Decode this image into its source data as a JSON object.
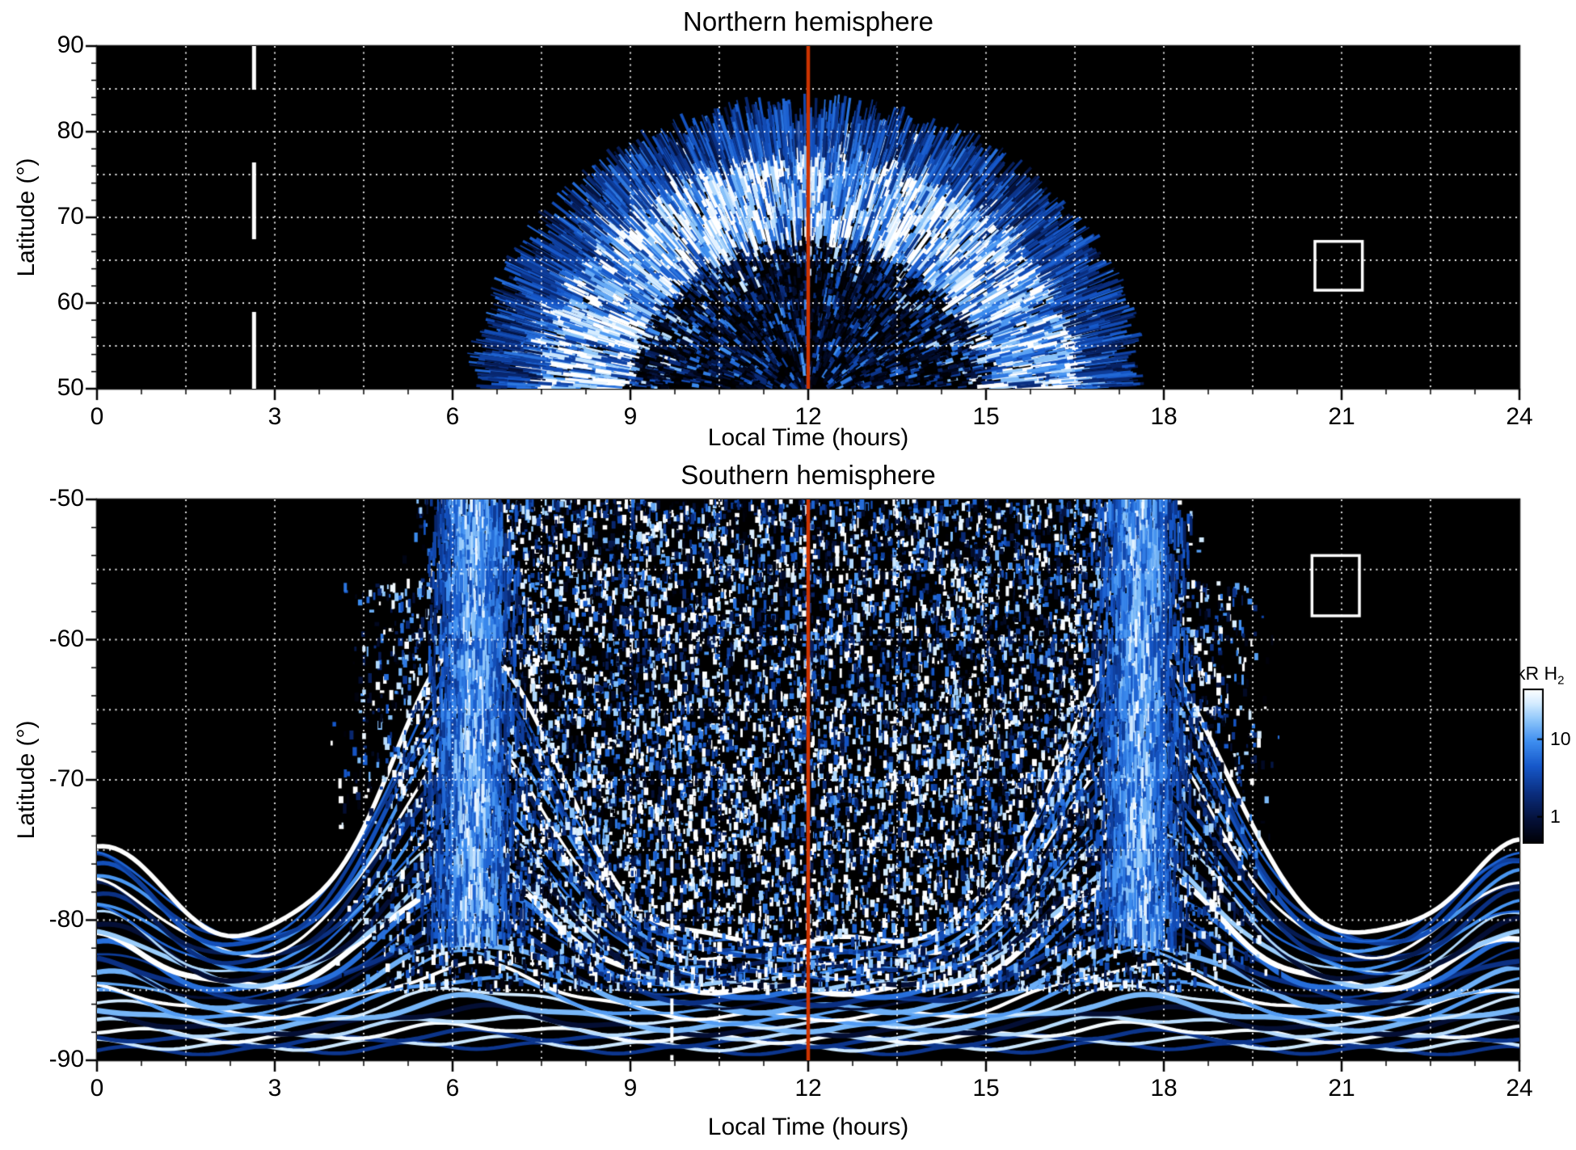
{
  "figure": {
    "background": "#ffffff"
  },
  "colorbar": {
    "label_prefix": "kR H",
    "label_sub": "2",
    "ticks": [
      "10",
      "1"
    ],
    "scale": "log",
    "gradient_top_to_bottom": [
      "#ffffff",
      "#a8d0f8",
      "#2e7ae0",
      "#0a2f80",
      "#04102e",
      "#000004"
    ]
  },
  "chart_data": [
    {
      "type": "heatmap",
      "hemisphere": "north",
      "title": "Northern hemisphere",
      "xlabel": "Local Time (hours)",
      "ylabel": "Latitude (°)",
      "xlim": [
        0,
        24
      ],
      "ylim": [
        50,
        90
      ],
      "xticks": [
        0,
        3,
        6,
        9,
        12,
        15,
        18,
        21,
        24
      ],
      "yticks": [
        90,
        80,
        70,
        60,
        50
      ],
      "grid": {
        "style": "dotted",
        "color": "#ffffff",
        "x_step": 1.5,
        "y_step": 5
      },
      "background": "#000000",
      "noon_line": {
        "x": 12,
        "color": "#cc3300"
      },
      "dashed_line": {
        "x": 2.65,
        "color": "#ffffff",
        "from_lat": 50,
        "to_lat": 90
      },
      "roi_box": {
        "x0": 20.55,
        "x1": 21.35,
        "lat0": 61.5,
        "lat1": 67.2,
        "color": "#ffffff"
      },
      "emission": {
        "description": "H2 auroral emission dome centred on 12 h local time, speckled blue interior with bright white ring near 63-76 deg",
        "center_hour": 12,
        "extent_hours": [
          7,
          17
        ],
        "max_latitude": 80,
        "bright_ring_latitudes": [
          63,
          76
        ]
      }
    },
    {
      "type": "heatmap",
      "hemisphere": "south",
      "title": "Southern hemisphere",
      "xlabel": "Local Time (hours)",
      "ylabel": "Latitude (°)",
      "xlim": [
        0,
        24
      ],
      "ylim": [
        -90,
        -50
      ],
      "xticks": [
        0,
        3,
        6,
        9,
        12,
        15,
        18,
        21,
        24
      ],
      "yticks": [
        -50,
        -60,
        -70,
        -80,
        -90
      ],
      "grid": {
        "style": "dotted",
        "color": "#ffffff",
        "x_step": 1.5,
        "y_step": 5
      },
      "background": "#000000",
      "noon_line": {
        "x": 12,
        "color": "#cc3300"
      },
      "dashed_line": {
        "x": 9.7,
        "color": "#ffffff",
        "from_lat": -75.5,
        "to_lat": -90
      },
      "roi_box": {
        "x0": 20.5,
        "x1": 21.3,
        "lat0": -58.3,
        "lat1": -54.0,
        "color": "#ffffff"
      },
      "emission": {
        "description": "H2 auroral emission filling the polar region: bright dawn and dusk columns, broad noon speckle, nested banded arcs below -80 deg spanning all local times",
        "column_hours": [
          6.35,
          17.6
        ],
        "speckle_extent_hours": [
          4.5,
          19.5
        ],
        "band_latitudes": [
          -90,
          -80
        ]
      }
    }
  ]
}
